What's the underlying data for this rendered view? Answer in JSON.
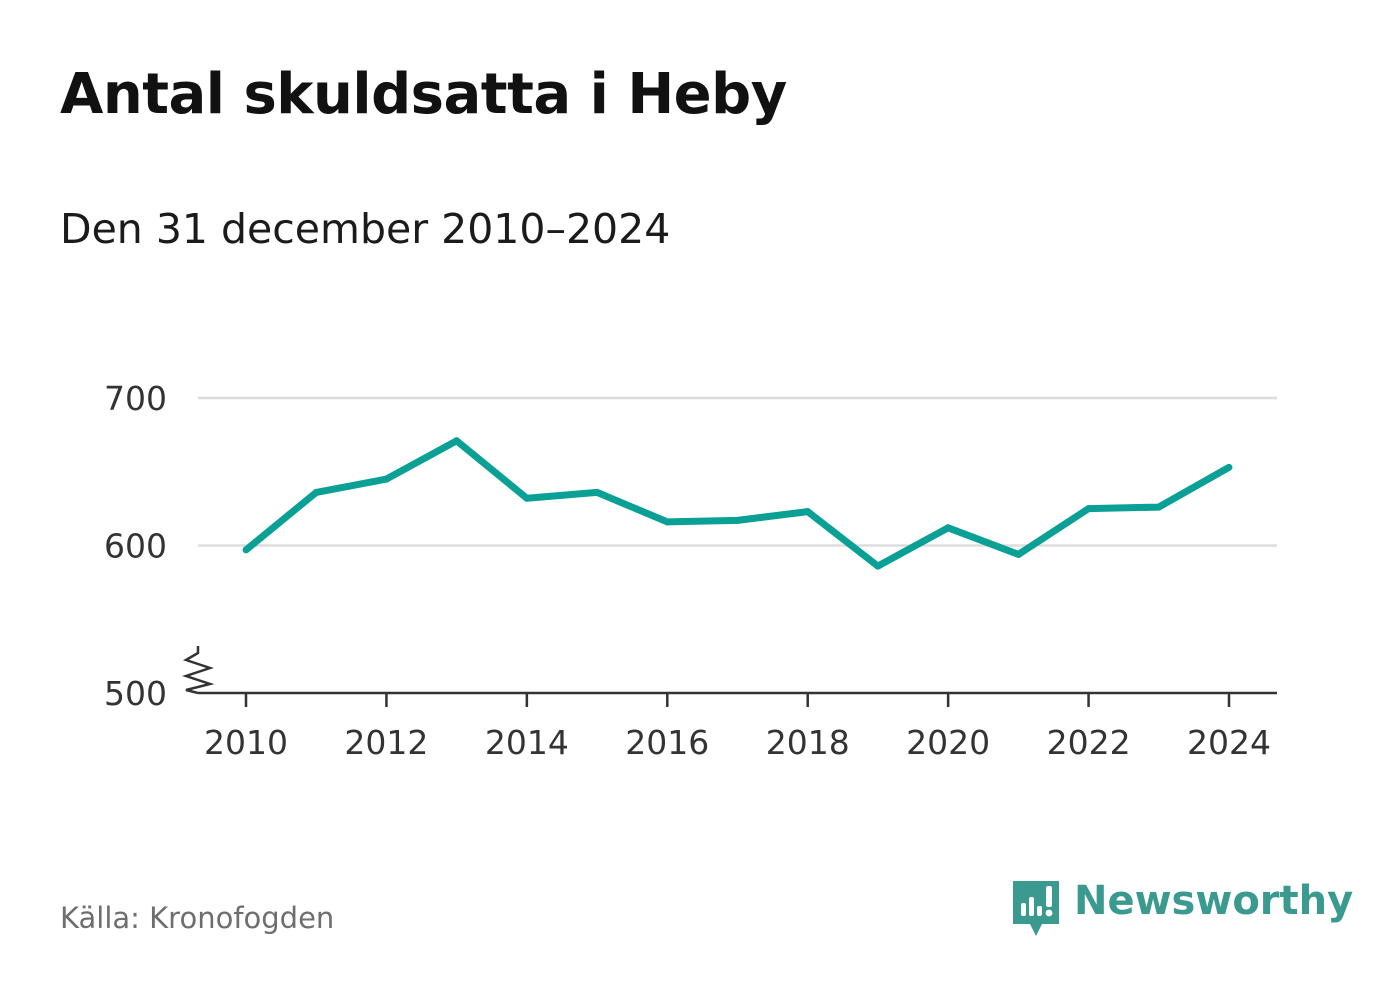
{
  "title": "Antal skuldsatta i Heby",
  "subtitle": "Den 31 december 2010–2024",
  "source": "Källa: Kronofogden",
  "brand": {
    "name": "Newsworthy",
    "icon": "newsworthy-logo-icon",
    "color": "#3a9a90"
  },
  "colors": {
    "line": "#0aa096",
    "grid": "#dddddd",
    "axis": "#333333"
  },
  "chart_data": {
    "type": "line",
    "title": "Antal skuldsatta i Heby",
    "subtitle": "Den 31 december 2010–2024",
    "xlabel": "",
    "ylabel": "",
    "x": [
      2010,
      2011,
      2012,
      2013,
      2014,
      2015,
      2016,
      2017,
      2018,
      2019,
      2020,
      2021,
      2022,
      2023,
      2024
    ],
    "values": [
      597,
      636,
      645,
      671,
      632,
      636,
      616,
      617,
      623,
      586,
      612,
      594,
      625,
      626,
      653
    ],
    "ylim": [
      500,
      700
    ],
    "y_ticks": [
      500,
      600,
      700
    ],
    "y_tick_labels": [
      "500",
      "600",
      "700"
    ],
    "x_ticks": [
      2010,
      2012,
      2014,
      2016,
      2018,
      2020,
      2022,
      2024
    ],
    "x_tick_labels": [
      "2010",
      "2012",
      "2014",
      "2016",
      "2018",
      "2020",
      "2022",
      "2024"
    ],
    "axis_break": true,
    "grid": true,
    "legend": "none"
  }
}
